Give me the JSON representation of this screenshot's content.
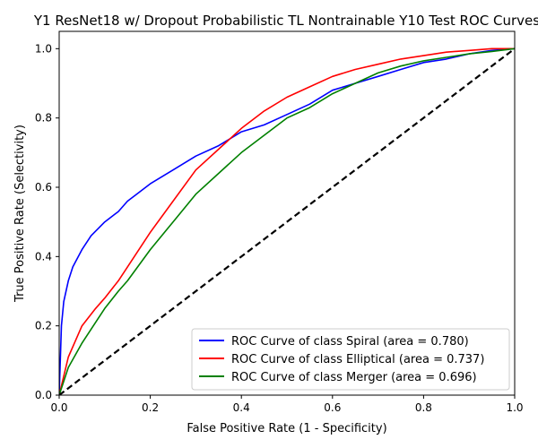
{
  "chart_data": {
    "type": "line",
    "title": "Y1 ResNet18 w/ Dropout Probabilistic TL Nontrainable Y10 Test ROC Curves",
    "xlabel": "False Positive Rate (1 - Specificity)",
    "ylabel": "True Positive Rate (Selectivity)",
    "xlim": [
      0.0,
      1.0
    ],
    "ylim": [
      0.0,
      1.05
    ],
    "xticks": [
      "0.0",
      "0.2",
      "0.4",
      "0.6",
      "0.8",
      "1.0"
    ],
    "yticks": [
      "0.0",
      "0.2",
      "0.4",
      "0.6",
      "0.8",
      "1.0"
    ],
    "grid": false,
    "legend_position": "lower-right",
    "series": [
      {
        "name": "ROC Curve of class Spiral (area = 0.780)",
        "color": "#0000ff",
        "x": [
          0.0,
          0.005,
          0.01,
          0.02,
          0.03,
          0.05,
          0.07,
          0.1,
          0.13,
          0.15,
          0.17,
          0.2,
          0.25,
          0.3,
          0.35,
          0.4,
          0.45,
          0.5,
          0.55,
          0.6,
          0.65,
          0.7,
          0.75,
          0.8,
          0.85,
          0.9,
          0.95,
          1.0
        ],
        "y": [
          0.0,
          0.2,
          0.27,
          0.33,
          0.37,
          0.42,
          0.46,
          0.5,
          0.53,
          0.56,
          0.58,
          0.61,
          0.65,
          0.69,
          0.72,
          0.76,
          0.78,
          0.81,
          0.84,
          0.88,
          0.9,
          0.92,
          0.94,
          0.96,
          0.97,
          0.985,
          0.995,
          1.0
        ]
      },
      {
        "name": "ROC Curve of class Elliptical (area = 0.737)",
        "color": "#ff0000",
        "x": [
          0.0,
          0.02,
          0.05,
          0.08,
          0.1,
          0.13,
          0.15,
          0.2,
          0.25,
          0.3,
          0.35,
          0.4,
          0.45,
          0.5,
          0.55,
          0.6,
          0.65,
          0.7,
          0.75,
          0.8,
          0.85,
          0.9,
          0.95,
          1.0
        ],
        "y": [
          0.0,
          0.11,
          0.2,
          0.25,
          0.28,
          0.33,
          0.37,
          0.47,
          0.56,
          0.65,
          0.71,
          0.77,
          0.82,
          0.86,
          0.89,
          0.92,
          0.94,
          0.955,
          0.97,
          0.98,
          0.99,
          0.995,
          1.0,
          1.0
        ]
      },
      {
        "name": "ROC Curve of class Merger (area = 0.696)",
        "color": "#008000",
        "x": [
          0.0,
          0.02,
          0.05,
          0.08,
          0.1,
          0.13,
          0.15,
          0.2,
          0.25,
          0.3,
          0.35,
          0.4,
          0.45,
          0.5,
          0.55,
          0.6,
          0.65,
          0.7,
          0.75,
          0.8,
          0.85,
          0.9,
          0.95,
          1.0
        ],
        "y": [
          0.0,
          0.08,
          0.15,
          0.21,
          0.25,
          0.3,
          0.33,
          0.42,
          0.5,
          0.58,
          0.64,
          0.7,
          0.75,
          0.8,
          0.83,
          0.87,
          0.9,
          0.93,
          0.95,
          0.965,
          0.975,
          0.985,
          0.992,
          1.0
        ]
      },
      {
        "name": "",
        "color": "#000000",
        "dashed": true,
        "x": [
          0.0,
          1.0
        ],
        "y": [
          0.0,
          1.0
        ]
      }
    ]
  }
}
